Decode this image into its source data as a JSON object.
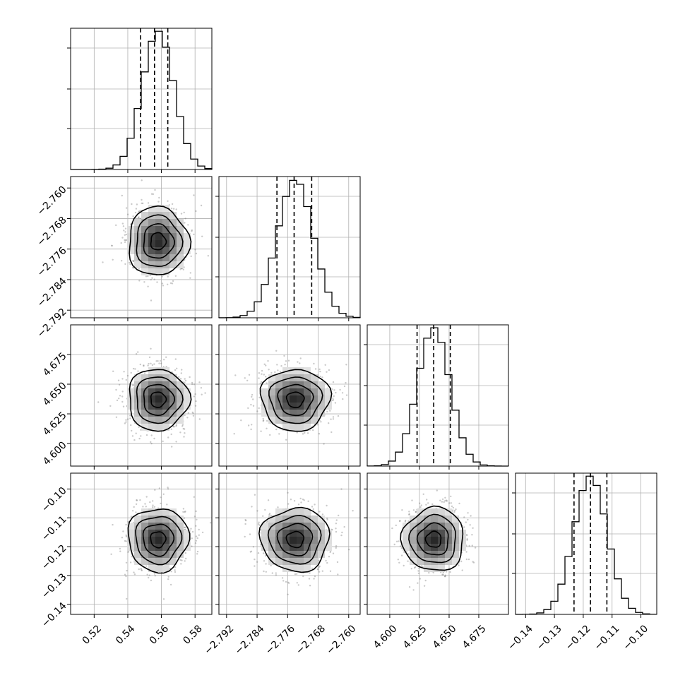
{
  "chart_data": {
    "type": "corner",
    "parameters": [
      {
        "mean": 0.558,
        "sigma": 0.009,
        "range": [
          0.506,
          0.59
        ],
        "ticks": [
          "0.52",
          "0.54",
          "0.56",
          "0.58"
        ],
        "quantiles": [
          0.5476,
          0.5559,
          0.5638
        ]
      },
      {
        "mean": -2.774,
        "sigma": 0.0045,
        "range": [
          -2.794,
          -2.757
        ],
        "ticks": [
          "−2.792",
          "−2.784",
          "−2.776",
          "−2.768",
          "−2.760"
        ],
        "quantiles": [
          -2.7788,
          -2.7743,
          -2.7697
        ]
      },
      {
        "mean": 4.637,
        "sigma": 0.013,
        "range": [
          4.581,
          4.7
        ],
        "ticks": [
          "4.600",
          "4.625",
          "4.650",
          "4.675"
        ],
        "quantiles": [
          4.623,
          4.637,
          4.651
        ]
      },
      {
        "mean": -0.1175,
        "sigma": 0.0055,
        "range": [
          -0.1435,
          -0.0945
        ],
        "ticks": [
          "−0.14",
          "−0.13",
          "−0.12",
          "−0.11",
          "−0.10"
        ],
        "quantiles": [
          -0.1232,
          -0.1175,
          -0.1118
        ]
      }
    ],
    "histogram_bins": 20,
    "levels_sigma": [
      0.5,
      1.0,
      1.5,
      2.0
    ],
    "grid": true
  }
}
